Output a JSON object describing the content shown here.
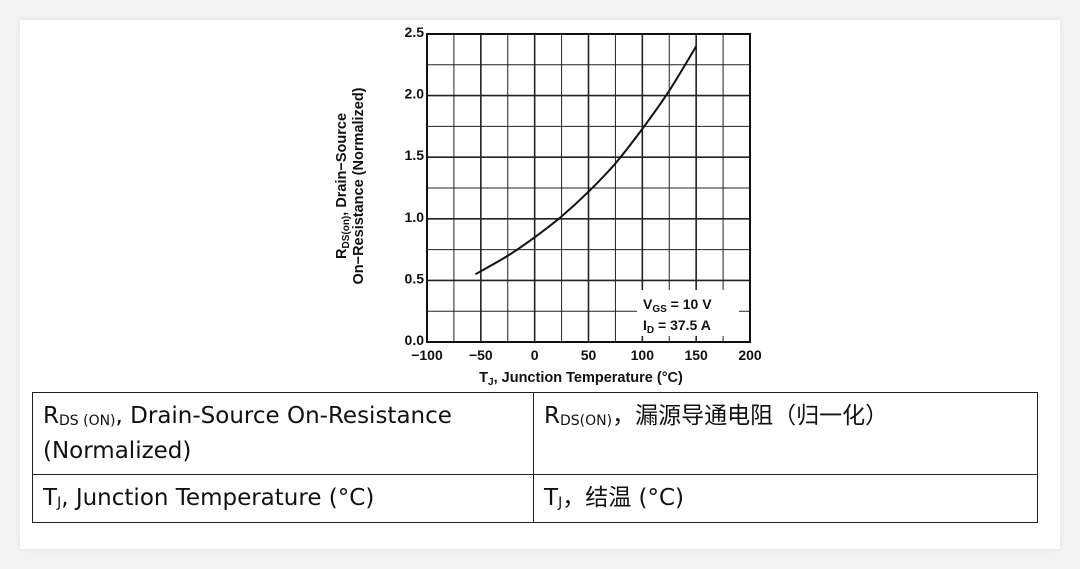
{
  "chart_data": {
    "type": "line",
    "xlabel_main": "T",
    "xlabel_sub": "J",
    "xlabel_rest": ", Junction Temperature (°C)",
    "ylabel_line1_main": "R",
    "ylabel_line1_sub": "DS(on)",
    "ylabel_line1_rest": ", Drain−Source",
    "ylabel_line2": "On−Resistance (Normalized)",
    "xlim": [
      -100,
      200
    ],
    "ylim": [
      0.0,
      2.5
    ],
    "x_ticks": [
      -100,
      -50,
      0,
      50,
      100,
      150,
      200
    ],
    "x_tick_labels": [
      "−100",
      "−50",
      "0",
      "50",
      "100",
      "150",
      "200"
    ],
    "y_ticks": [
      0.0,
      0.5,
      1.0,
      1.5,
      2.0,
      2.5
    ],
    "y_tick_labels": [
      "0.0",
      "0.5",
      "1.0",
      "1.5",
      "2.0",
      "2.5"
    ],
    "grid": true,
    "line_color": "#111111",
    "series": [
      {
        "x": [
          -55,
          -25,
          0,
          25,
          50,
          75,
          100,
          125,
          150
        ],
        "y": [
          0.55,
          0.7,
          0.85,
          1.02,
          1.22,
          1.45,
          1.73,
          2.04,
          2.4
        ]
      }
    ],
    "annotation": {
      "line1_main": "V",
      "line1_sub": "GS",
      "line1_rest": " = 10 V",
      "line2_main": "I",
      "line2_sub": "D",
      "line2_rest": " = 37.5 A"
    }
  },
  "glossary": {
    "row1_en_main": "R",
    "row1_en_sub": "DS (ON)",
    "row1_en_rest": ", Drain-Source On-Resistance (Normalized)",
    "row1_zh_main": "R",
    "row1_zh_sub": "DS(ON)",
    "row1_zh_rest": "，漏源导通电阻（归一化）",
    "row2_en_main": "T",
    "row2_en_sub": "J",
    "row2_en_rest": ", Junction Temperature (°C)",
    "row2_zh_main": "T",
    "row2_zh_sub": "J",
    "row2_zh_rest": "，结温 (°C)"
  }
}
